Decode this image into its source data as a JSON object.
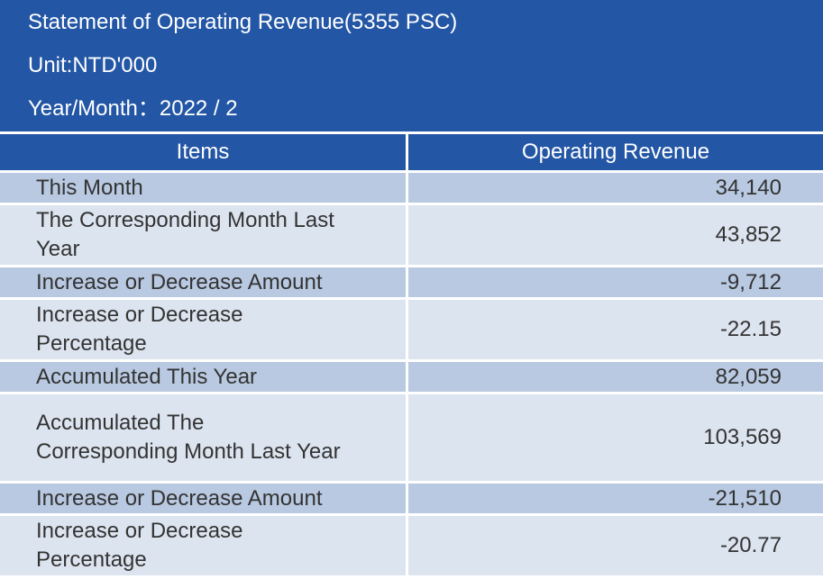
{
  "header": {
    "title": "Statement of Operating Revenue(5355 PSC)",
    "unit": "Unit:NTD'000",
    "year_month_label": "Year/Month：",
    "year_month_value": "2022 / 2"
  },
  "table": {
    "columns": [
      "Items",
      "Operating Revenue"
    ],
    "rows": [
      {
        "item": "This Month",
        "value": "34,140"
      },
      {
        "item": "The Corresponding Month Last Year",
        "value": "43,852"
      },
      {
        "item": "Increase or Decrease Amount",
        "value": "-9,712"
      },
      {
        "item": "Increase or Decrease Percentage",
        "value": "-22.15"
      },
      {
        "item": "Accumulated This Year",
        "value": "82,059"
      },
      {
        "item": "Accumulated The Corresponding Month Last Year",
        "value": "103,569"
      },
      {
        "item": "Increase or Decrease Amount",
        "value": "-21,510"
      },
      {
        "item": "Increase or Decrease Percentage",
        "value": "-20.77"
      }
    ]
  },
  "colors": {
    "header_bg": "#2356a5",
    "row_shade": "#b8c9e1",
    "row_light": "#dce4f0",
    "text": "#333333"
  }
}
